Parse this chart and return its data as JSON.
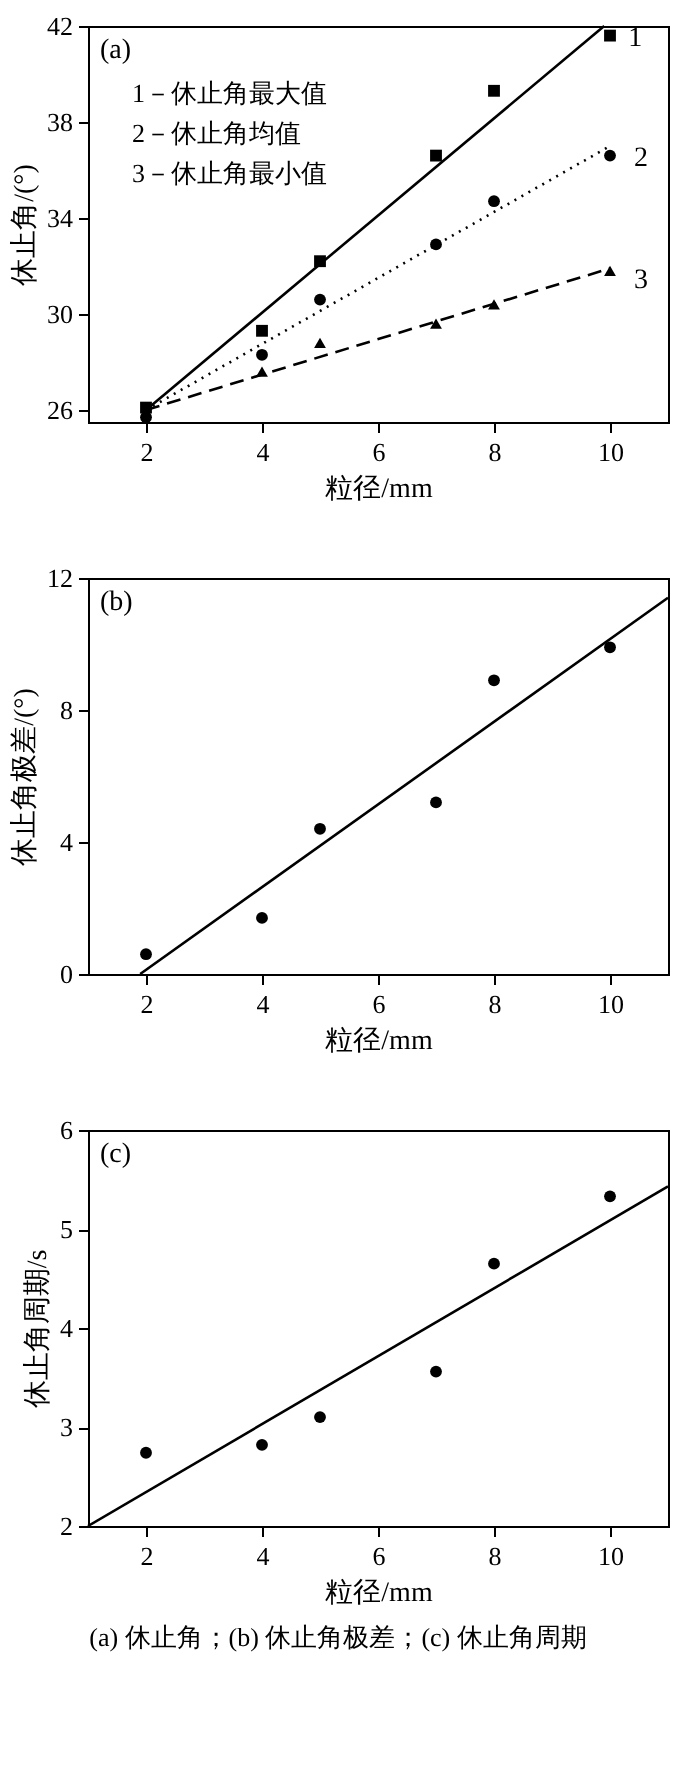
{
  "chart_data": [
    {
      "type": "scatter",
      "title": "(a)",
      "xlabel": "粒径/mm",
      "ylabel": "休止角/(°)",
      "xlim": [
        1,
        11
      ],
      "ylim": [
        25.5,
        42
      ],
      "xticks": [
        2,
        4,
        6,
        8,
        10
      ],
      "yticks": [
        26,
        30,
        34,
        38,
        42
      ],
      "grid": false,
      "series": [
        {
          "type": "scatter",
          "marker": "square",
          "color": "#000000",
          "x": [
            2,
            4,
            5,
            7,
            8,
            10
          ],
          "values": [
            26.1,
            29.3,
            32.2,
            36.6,
            39.3,
            41.6
          ]
        },
        {
          "type": "scatter",
          "marker": "circle",
          "color": "#000000",
          "x": [
            2,
            4,
            5,
            7,
            8,
            10
          ],
          "values": [
            25.7,
            28.3,
            30.6,
            32.9,
            34.7,
            36.6
          ]
        },
        {
          "type": "scatter",
          "marker": "triangle",
          "color": "#000000",
          "x": [
            4,
            5,
            7,
            8,
            10
          ],
          "values": [
            27.6,
            28.8,
            29.6,
            30.4,
            31.8
          ]
        },
        {
          "type": "line",
          "line_style": "solid",
          "color": "#000000",
          "x": [
            2,
            9.9
          ],
          "values": [
            26,
            42
          ]
        },
        {
          "type": "line",
          "line_style": "dotted",
          "color": "#000000",
          "x": [
            2,
            10
          ],
          "values": [
            26,
            37.0
          ]
        },
        {
          "type": "line",
          "line_style": "dashed",
          "color": "#000000",
          "x": [
            2,
            10
          ],
          "values": [
            26,
            31.9
          ]
        }
      ],
      "annotations": [
        "1－休止角最大值",
        "2－休止角均值",
        "3－休止角最小值",
        "1",
        "2",
        "3"
      ]
    },
    {
      "type": "scatter",
      "title": "(b)",
      "xlabel": "粒径/mm",
      "ylabel": "休止角极差/(°)",
      "xlim": [
        1,
        11
      ],
      "ylim": [
        0,
        12
      ],
      "xticks": [
        2,
        4,
        6,
        8,
        10
      ],
      "yticks": [
        0,
        4,
        8,
        12
      ],
      "grid": false,
      "series": [
        {
          "type": "scatter",
          "marker": "circle",
          "color": "#000000",
          "x": [
            2,
            4,
            5,
            7,
            8,
            10
          ],
          "values": [
            0.6,
            1.7,
            4.4,
            5.2,
            8.9,
            9.9
          ]
        },
        {
          "type": "line",
          "line_style": "solid",
          "color": "#000000",
          "x": [
            1.9,
            11
          ],
          "values": [
            0,
            11.4
          ]
        }
      ]
    },
    {
      "type": "scatter",
      "title": "(c)",
      "xlabel": "粒径/mm",
      "ylabel": "休止角周期/s",
      "xlim": [
        1,
        11
      ],
      "ylim": [
        2,
        6
      ],
      "xticks": [
        2,
        4,
        6,
        8,
        10
      ],
      "yticks": [
        2,
        3,
        4,
        5,
        6
      ],
      "grid": false,
      "series": [
        {
          "type": "scatter",
          "marker": "circle",
          "color": "#000000",
          "x": [
            2,
            4,
            5,
            7,
            8,
            10
          ],
          "values": [
            2.74,
            2.82,
            3.1,
            3.56,
            4.65,
            5.33
          ]
        },
        {
          "type": "line",
          "line_style": "solid",
          "color": "#000000",
          "x": [
            1,
            11
          ],
          "values": [
            2,
            5.43
          ]
        }
      ],
      "annotations": [
        "(a) 休止角；(b) 休止角极差；(c) 休止角周期"
      ]
    }
  ]
}
